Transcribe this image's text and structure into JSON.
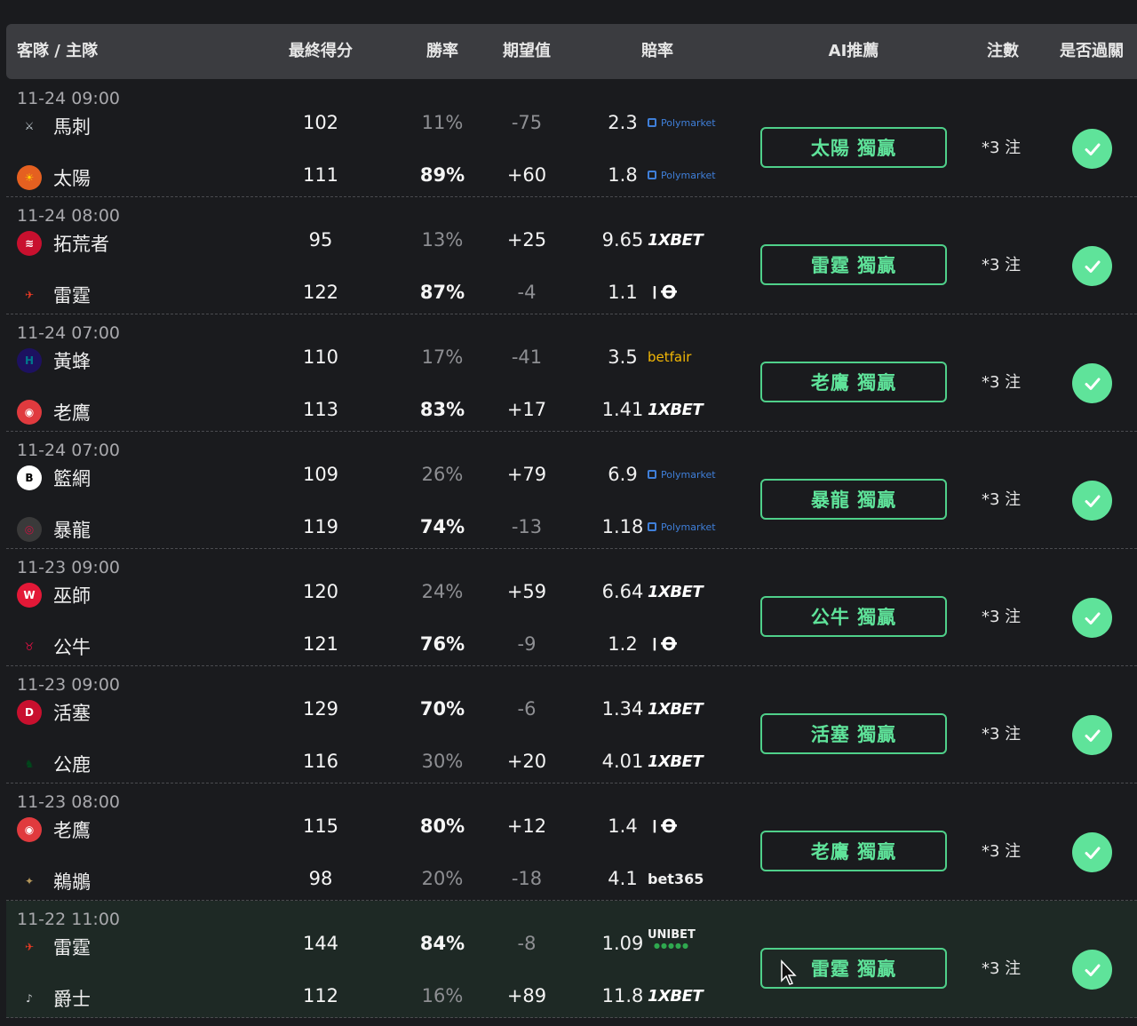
{
  "header": {
    "teams": "客隊 / 主隊",
    "final_score": "最終得分",
    "win_rate": "勝率",
    "expected_value": "期望值",
    "odds": "賠率",
    "ai_pick": "AI推薦",
    "bets": "注數",
    "passed": "是否過關"
  },
  "colors": {
    "accent_green": "#5fe39a",
    "header_bg": "#3b3c40",
    "page_bg": "#1a1b1e"
  },
  "games": [
    {
      "time": "11-24 09:00",
      "away": {
        "name": "馬刺",
        "logo": "spurs-logo",
        "score": "102",
        "win": "11%",
        "ev": "-75",
        "odds": "2.3",
        "book": "Polymarket"
      },
      "home": {
        "name": "太陽",
        "logo": "suns-logo",
        "score": "111",
        "win": "89%",
        "ev": "+60",
        "odds": "1.8",
        "book": "Polymarket"
      },
      "pick": "太陽 獨贏",
      "bets": "*3 注",
      "passed": true
    },
    {
      "time": "11-24 08:00",
      "away": {
        "name": "拓荒者",
        "logo": "blazers-logo",
        "score": "95",
        "win": "13%",
        "ev": "+25",
        "odds": "9.65",
        "book": "1XBET"
      },
      "home": {
        "name": "雷霆",
        "logo": "thunder-logo",
        "score": "122",
        "win": "87%",
        "ev": "-4",
        "odds": "1.1",
        "book": "10bet"
      },
      "pick": "雷霆 獨贏",
      "bets": "*3 注",
      "passed": true
    },
    {
      "time": "11-24 07:00",
      "away": {
        "name": "黃蜂",
        "logo": "hornets-logo",
        "score": "110",
        "win": "17%",
        "ev": "-41",
        "odds": "3.5",
        "book": "betfair"
      },
      "home": {
        "name": "老鷹",
        "logo": "hawks-logo",
        "score": "113",
        "win": "83%",
        "ev": "+17",
        "odds": "1.41",
        "book": "1XBET"
      },
      "pick": "老鷹 獨贏",
      "bets": "*3 注",
      "passed": true
    },
    {
      "time": "11-24 07:00",
      "away": {
        "name": "籃網",
        "logo": "nets-logo",
        "score": "109",
        "win": "26%",
        "ev": "+79",
        "odds": "6.9",
        "book": "Polymarket"
      },
      "home": {
        "name": "暴龍",
        "logo": "raptors-logo",
        "score": "119",
        "win": "74%",
        "ev": "-13",
        "odds": "1.18",
        "book": "Polymarket"
      },
      "pick": "暴龍 獨贏",
      "bets": "*3 注",
      "passed": true
    },
    {
      "time": "11-23 09:00",
      "away": {
        "name": "巫師",
        "logo": "wizards-logo",
        "score": "120",
        "win": "24%",
        "ev": "+59",
        "odds": "6.64",
        "book": "1XBET"
      },
      "home": {
        "name": "公牛",
        "logo": "bulls-logo",
        "score": "121",
        "win": "76%",
        "ev": "-9",
        "odds": "1.2",
        "book": "10bet"
      },
      "pick": "公牛 獨贏",
      "bets": "*3 注",
      "passed": true
    },
    {
      "time": "11-23 09:00",
      "away": {
        "name": "活塞",
        "logo": "pistons-logo",
        "score": "129",
        "win": "70%",
        "ev": "-6",
        "odds": "1.34",
        "book": "1XBET"
      },
      "home": {
        "name": "公鹿",
        "logo": "bucks-logo",
        "score": "116",
        "win": "30%",
        "ev": "+20",
        "odds": "4.01",
        "book": "1XBET"
      },
      "pick": "活塞 獨贏",
      "bets": "*3 注",
      "passed": true
    },
    {
      "time": "11-23 08:00",
      "away": {
        "name": "老鷹",
        "logo": "hawks-logo",
        "score": "115",
        "win": "80%",
        "ev": "+12",
        "odds": "1.4",
        "book": "10bet"
      },
      "home": {
        "name": "鵜鶘",
        "logo": "pelicans-logo",
        "score": "98",
        "win": "20%",
        "ev": "-18",
        "odds": "4.1",
        "book": "bet365"
      },
      "pick": "老鷹 獨贏",
      "bets": "*3 注",
      "passed": true
    },
    {
      "time": "11-22 11:00",
      "away": {
        "name": "雷霆",
        "logo": "thunder-logo",
        "score": "144",
        "win": "84%",
        "ev": "-8",
        "odds": "1.09",
        "book": "UNIBET"
      },
      "home": {
        "name": "爵士",
        "logo": "jazz-logo",
        "score": "112",
        "win": "16%",
        "ev": "+89",
        "odds": "11.8",
        "book": "1XBET"
      },
      "pick": "雷霆 獨贏",
      "bets": "*3 注",
      "passed": true
    }
  ]
}
